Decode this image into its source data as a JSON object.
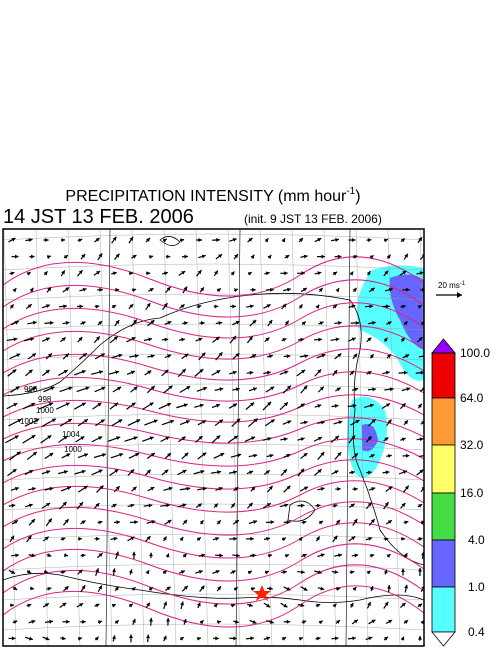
{
  "header": {
    "title": "PRECIPITATION INTENSITY (mm hour",
    "title_exponent": "-1",
    "title_close": ")",
    "valid_time": "14 JST 13 FEB. 2006",
    "init_time": "(init. 9 JST 13 FEB. 2006)"
  },
  "wind_scale": {
    "label": "20 ms",
    "exponent": "-1"
  },
  "colorbar": {
    "labels": [
      "100.0",
      "64.0",
      "32.0",
      "16.0",
      "4.0",
      "1.0",
      "0.4"
    ]
  },
  "isobars": {
    "labels": [
      "996",
      "998",
      "1000",
      "1002",
      "1004",
      "1000"
    ]
  }
}
